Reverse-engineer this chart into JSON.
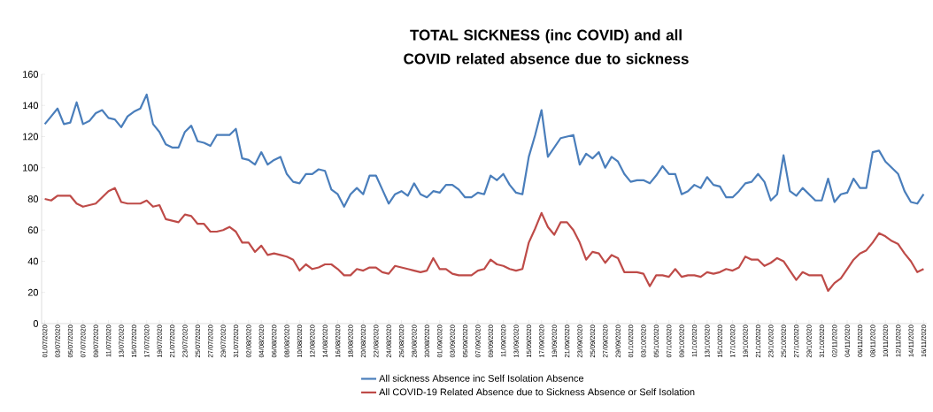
{
  "chart_data": {
    "type": "line",
    "title": "TOTAL SICKNESS (inc COVID) and all COVID related absence due to sickness",
    "categories": [
      "01/07/2020",
      null,
      "03/07/2020",
      null,
      "05/07/2020",
      null,
      "07/07/2020",
      null,
      "09/07/2020",
      null,
      "11/07/2020",
      null,
      "13/07/2020",
      null,
      "15/07/2020",
      null,
      "17/07/2020",
      null,
      "19/07/2020",
      null,
      "21/07/2020",
      null,
      "23/07/2020",
      null,
      "25/07/2020",
      null,
      "27/07/2020",
      null,
      "29/07/2020",
      null,
      "31/07/2020",
      null,
      "02/08/2020",
      null,
      "04/08/2020",
      null,
      "06/08/2020",
      null,
      "08/08/2020",
      null,
      "10/08/2020",
      null,
      "12/08/2020",
      null,
      "14/08/2020",
      null,
      "16/08/2020",
      null,
      "18/08/2020",
      null,
      "20/08/2020",
      null,
      "22/08/2020",
      null,
      "24/08/2020",
      null,
      "26/08/2020",
      null,
      "28/08/2020",
      null,
      "30/08/2020",
      null,
      "01/09/2020",
      null,
      "03/09/2020",
      null,
      "05/09/2020",
      null,
      "07/09/2020",
      null,
      "09/09/2020",
      null,
      "11/09/2020",
      null,
      "13/09/2020",
      null,
      "15/09/2020",
      null,
      "17/09/2020",
      null,
      "19/09/2020",
      null,
      "21/09/2020",
      null,
      "23/09/2020",
      null,
      "25/09/2020",
      null,
      "27/09/2020",
      null,
      "29/09/2020",
      null,
      "01/10/2020",
      null,
      "03/10/2020",
      null,
      "05/10/2020",
      null,
      "07/10/2020",
      null,
      "09/10/2020",
      null,
      "11/10/2020",
      null,
      "13/10/2020",
      null,
      "15/10/2020",
      null,
      "17/10/2020",
      null,
      "19/10/2020",
      null,
      "21/10/2020",
      null,
      "23/10/2020",
      null,
      "25/10/2020",
      null,
      "27/10/2020",
      null,
      "29/10/2020",
      null,
      "31/10/2020",
      null,
      "02/11/2020",
      null,
      "04/11/2020",
      null,
      "06/11/2020",
      null,
      "08/11/2020",
      null,
      "10/11/2020",
      null,
      "12/11/2020",
      null,
      "14/11/2020",
      null,
      "16/11/2020"
    ],
    "series": [
      {
        "name": "All sickness Absence inc Self Isolation Absence",
        "color": "#4a7ebb",
        "values": [
          128,
          133,
          138,
          128,
          129,
          142,
          128,
          130,
          135,
          137,
          132,
          131,
          126,
          133,
          136,
          138,
          147,
          128,
          123,
          115,
          113,
          113,
          123,
          127,
          117,
          116,
          114,
          121,
          121,
          121,
          125,
          106,
          105,
          102,
          110,
          102,
          105,
          107,
          96,
          91,
          90,
          96,
          96,
          99,
          98,
          86,
          83,
          75,
          83,
          87,
          83,
          95,
          95,
          86,
          77,
          83,
          85,
          82,
          90,
          83,
          81,
          85,
          84,
          89,
          89,
          86,
          81,
          81,
          84,
          83,
          95,
          92,
          96,
          89,
          84,
          83,
          107,
          121,
          137,
          107,
          113,
          119,
          120,
          121,
          102,
          109,
          106,
          110,
          100,
          107,
          104,
          96,
          91,
          92,
          92,
          90,
          95,
          101,
          96,
          96,
          83,
          85,
          89,
          87,
          94,
          89,
          88,
          81,
          81,
          85,
          90,
          91,
          96,
          91,
          79,
          83,
          108,
          85,
          82,
          87,
          83,
          79,
          79,
          93,
          78,
          83,
          84,
          93,
          87,
          87,
          110,
          111,
          104,
          100,
          96,
          85,
          78,
          77,
          83
        ]
      },
      {
        "name": "All COVID-19 Related Absence due to Sickness Absence or Self Isolation",
        "color": "#be4b48",
        "values": [
          80,
          79,
          82,
          82,
          82,
          77,
          75,
          76,
          77,
          81,
          85,
          87,
          78,
          77,
          77,
          77,
          79,
          75,
          76,
          67,
          66,
          65,
          70,
          69,
          64,
          64,
          59,
          59,
          60,
          62,
          59,
          52,
          52,
          46,
          50,
          44,
          45,
          44,
          43,
          41,
          34,
          38,
          35,
          36,
          38,
          38,
          35,
          31,
          31,
          35,
          34,
          36,
          36,
          33,
          32,
          37,
          36,
          35,
          34,
          33,
          34,
          42,
          35,
          35,
          32,
          31,
          31,
          31,
          34,
          35,
          41,
          38,
          37,
          35,
          34,
          35,
          52,
          61,
          71,
          62,
          57,
          65,
          65,
          60,
          52,
          41,
          46,
          45,
          39,
          44,
          42,
          33,
          33,
          33,
          32,
          24,
          31,
          31,
          30,
          35,
          30,
          31,
          31,
          30,
          33,
          32,
          33,
          35,
          34,
          36,
          43,
          41,
          41,
          37,
          39,
          42,
          40,
          34,
          28,
          33,
          31,
          31,
          31,
          21,
          26,
          29,
          35,
          41,
          45,
          47,
          52,
          58,
          56,
          53,
          51,
          45,
          40,
          33,
          35
        ]
      }
    ],
    "ylim": [
      0,
      160
    ],
    "yticks": [
      0,
      20,
      40,
      60,
      80,
      100,
      120,
      140,
      160
    ],
    "legend": "bottom"
  }
}
